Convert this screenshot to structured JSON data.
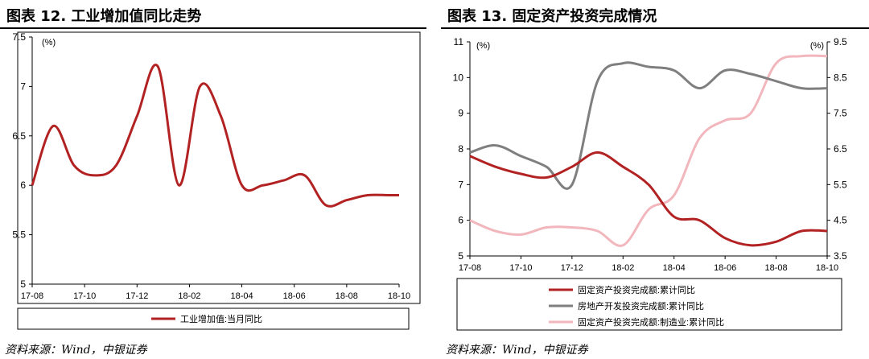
{
  "left_panel": {
    "title": "图表 12. 工业增加值同比走势",
    "source": "资料来源：Wind，中银证券"
  },
  "right_panel": {
    "title": "图表 13. 固定资产投资完成情况",
    "source": "资料来源：Wind，中银证券"
  },
  "chart_data": [
    {
      "type": "line",
      "title": "",
      "y_unit": "(%)",
      "ylim": [
        5,
        7.5
      ],
      "y_ticks": [
        "5",
        "5.5",
        "6",
        "6.5",
        "7",
        "7.5"
      ],
      "x_ticks": [
        "17-08",
        "17-10",
        "17-12",
        "18-02",
        "18-04",
        "18-06",
        "18-08",
        "18-10"
      ],
      "x_range": [
        0,
        14
      ],
      "grid": false,
      "legend_position": "bottom",
      "series": [
        {
          "name": "工业增加值:当月同比",
          "color": "#b22222",
          "x": [
            0,
            0.8,
            1.6,
            2.4,
            3.2,
            4.0,
            4.8,
            5.6,
            6.4,
            7.2,
            8.0,
            8.8,
            9.6,
            10.4,
            11.2,
            12.0,
            12.8,
            13.6,
            14.0
          ],
          "values": [
            6.0,
            6.6,
            6.2,
            6.1,
            6.2,
            6.7,
            7.2,
            6.0,
            7.0,
            6.7,
            6.0,
            6.0,
            6.05,
            6.1,
            5.8,
            5.85,
            5.9,
            5.9,
            5.9
          ]
        }
      ]
    },
    {
      "type": "line",
      "title": "",
      "y_unit_left": "(%)",
      "y_unit_right": "(%)",
      "ylim_left": [
        5,
        11
      ],
      "ylim_right": [
        3.5,
        9.5
      ],
      "y_ticks_left": [
        "5",
        "6",
        "7",
        "8",
        "9",
        "10",
        "11"
      ],
      "y_ticks_right": [
        "3.5",
        "4.5",
        "5.5",
        "6.5",
        "7.5",
        "8.5",
        "9.5"
      ],
      "x_ticks": [
        "17-08",
        "17-10",
        "17-12",
        "18-02",
        "18-04",
        "18-06",
        "18-08",
        "18-10"
      ],
      "x_range": [
        0,
        14
      ],
      "grid": false,
      "legend_position": "bottom",
      "series": [
        {
          "name": "固定资产投资完成额:累计同比",
          "axis": "left",
          "color": "#b22222",
          "x": [
            0,
            1,
            2,
            3,
            4,
            5,
            6,
            7,
            8,
            9,
            10,
            11,
            12,
            13,
            14
          ],
          "values": [
            7.8,
            7.5,
            7.3,
            7.2,
            7.5,
            7.9,
            7.5,
            7.0,
            6.1,
            6.0,
            5.5,
            5.3,
            5.4,
            5.7,
            5.7
          ]
        },
        {
          "name": "房地产开发投资完成额:累计同比",
          "axis": "left",
          "color": "#7f7f7f",
          "x": [
            0,
            1,
            2,
            3,
            4,
            5,
            6,
            7,
            8,
            9,
            10,
            11,
            12,
            13,
            14
          ],
          "values": [
            7.9,
            8.1,
            7.8,
            7.5,
            7.0,
            9.9,
            10.4,
            10.3,
            10.2,
            9.7,
            10.2,
            10.1,
            9.9,
            9.7,
            9.7
          ]
        },
        {
          "name": "固定资产投资完成额:制造业:累计同比",
          "axis": "right",
          "color": "#f2b6bd",
          "x": [
            0,
            1,
            2,
            3,
            4,
            5,
            6,
            7,
            8,
            9,
            10,
            11,
            12,
            13,
            14
          ],
          "values": [
            4.5,
            4.2,
            4.1,
            4.3,
            4.3,
            4.2,
            3.8,
            4.8,
            5.2,
            6.8,
            7.3,
            7.5,
            8.9,
            9.1,
            9.1
          ]
        }
      ]
    }
  ]
}
